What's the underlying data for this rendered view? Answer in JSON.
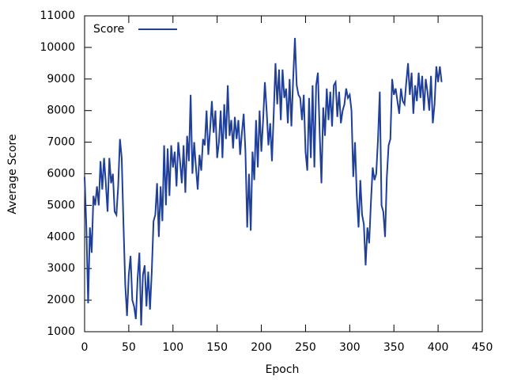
{
  "chart_data": {
    "type": "line",
    "xlabel": "Epoch",
    "ylabel": "Average Score",
    "x": [
      0,
      2,
      4,
      6,
      8,
      10,
      12,
      14,
      16,
      18,
      20,
      22,
      24,
      26,
      28,
      30,
      32,
      34,
      36,
      38,
      40,
      42,
      44,
      46,
      48,
      50,
      52,
      54,
      56,
      58,
      60,
      62,
      64,
      66,
      68,
      70,
      72,
      74,
      76,
      78,
      80,
      82,
      84,
      86,
      88,
      90,
      92,
      94,
      96,
      98,
      100,
      102,
      104,
      106,
      108,
      110,
      112,
      114,
      116,
      118,
      120,
      122,
      124,
      126,
      128,
      130,
      132,
      134,
      136,
      138,
      140,
      142,
      144,
      146,
      148,
      150,
      152,
      154,
      156,
      158,
      160,
      162,
      164,
      166,
      168,
      170,
      172,
      174,
      176,
      178,
      180,
      182,
      184,
      186,
      188,
      190,
      192,
      194,
      196,
      198,
      200,
      202,
      204,
      206,
      208,
      210,
      212,
      214,
      216,
      218,
      220,
      222,
      224,
      226,
      228,
      230,
      232,
      234,
      236,
      238,
      240,
      242,
      244,
      246,
      248,
      250,
      252,
      254,
      256,
      258,
      260,
      262,
      264,
      266,
      268,
      270,
      272,
      274,
      276,
      278,
      280,
      282,
      284,
      286,
      288,
      290,
      292,
      294,
      296,
      298,
      300,
      302,
      304,
      306,
      308,
      310,
      312,
      314,
      316,
      318,
      320,
      322,
      324,
      326,
      328,
      330,
      332,
      334,
      336,
      338,
      340,
      342,
      344,
      346,
      348,
      350,
      352,
      354,
      356,
      358,
      360,
      362,
      364,
      366,
      368,
      370,
      372,
      374,
      376,
      378,
      380,
      382,
      384,
      386,
      388,
      390,
      392,
      394,
      396,
      398,
      400,
      402,
      404
    ],
    "series": [
      {
        "name": "Score",
        "color": "#1f3f99",
        "values": [
          5900,
          4300,
          1900,
          4300,
          3500,
          5300,
          5000,
          5600,
          5000,
          6400,
          5500,
          6500,
          5700,
          4800,
          6500,
          5700,
          6000,
          4800,
          4700,
          5600,
          7100,
          6500,
          4400,
          2500,
          1500,
          2800,
          3400,
          2000,
          1800,
          1400,
          2700,
          3500,
          1200,
          2800,
          3100,
          1800,
          2900,
          1700,
          2900,
          4500,
          4700,
          5700,
          4000,
          5600,
          4500,
          6900,
          5000,
          6800,
          5300,
          6900,
          6200,
          6700,
          5600,
          7000,
          6400,
          5700,
          6900,
          5400,
          7200,
          6400,
          8500,
          6000,
          7000,
          6200,
          5500,
          6600,
          6100,
          7100,
          6900,
          8000,
          6600,
          7400,
          8300,
          7300,
          8000,
          6500,
          7000,
          8000,
          6500,
          8200,
          7100,
          8800,
          7200,
          7700,
          6800,
          7800,
          7100,
          7700,
          6600,
          7300,
          7900,
          6700,
          4300,
          6000,
          4200,
          6700,
          5800,
          7700,
          6200,
          8000,
          6700,
          7700,
          8900,
          8000,
          6900,
          7600,
          6400,
          7900,
          9500,
          8200,
          9300,
          7700,
          9300,
          8400,
          8700,
          7600,
          9000,
          7500,
          9000,
          10300,
          8800,
          8500,
          8400,
          7700,
          8500,
          6700,
          6100,
          8400,
          6500,
          8800,
          6200,
          8800,
          9200,
          7300,
          5700,
          8100,
          7200,
          8700,
          7700,
          8600,
          7500,
          8800,
          8900,
          7800,
          8600,
          7600,
          8000,
          8200,
          8700,
          8400,
          8500,
          8000,
          5900,
          7000,
          5300,
          4300,
          5800,
          4700,
          4400,
          3100,
          4300,
          3800,
          5100,
          6200,
          5800,
          6000,
          7100,
          8600,
          5000,
          4800,
          4000,
          5900,
          6900,
          7100,
          9000,
          8500,
          8700,
          8300,
          7900,
          8700,
          8300,
          8200,
          8900,
          9500,
          8500,
          9200,
          7900,
          8800,
          8300,
          9200,
          8400,
          9100,
          8000,
          9000,
          8600,
          8000,
          9100,
          7600,
          8200,
          9400,
          8900,
          9400,
          8900
        ]
      }
    ],
    "xlim": [
      0,
      450
    ],
    "xticks": [
      0,
      50,
      100,
      150,
      200,
      250,
      300,
      350,
      400,
      450
    ],
    "ylim": [
      1000,
      11000
    ],
    "yticks": [
      1000,
      2000,
      3000,
      4000,
      5000,
      6000,
      7000,
      8000,
      9000,
      10000,
      11000
    ],
    "legend": "top-left"
  }
}
